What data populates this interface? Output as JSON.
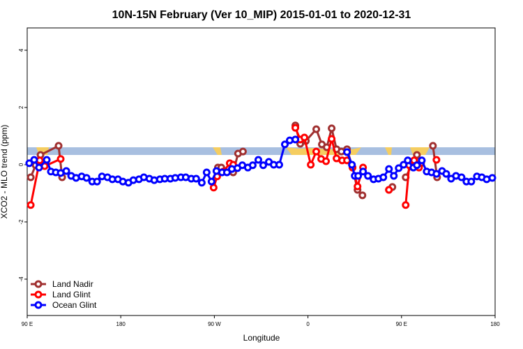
{
  "chart_data": {
    "type": "line",
    "title": "10N-15N February (Ver 10_MIP)   2015-01-01 to 2020-12-31",
    "xlabel": "Longitude",
    "ylabel": "XCO2 - MLO trend (ppm)",
    "xlim": [
      90,
      540
    ],
    "xticks": [
      {
        "value": 90,
        "label": "90 E"
      },
      180,
      {
        "value": 270,
        "label": "90 W"
      },
      {
        "value": 360,
        "label": "0"
      },
      {
        "value": 450,
        "label": "90 E"
      },
      {
        "value": 540,
        "label": "180"
      }
    ],
    "ylim": [
      -5.27,
      4.78
    ],
    "yticks": [
      -4,
      -2,
      0,
      2,
      4
    ],
    "legend": "lower left",
    "series": [
      {
        "name": "Land Nadir",
        "color": "#a03030",
        "x": [
          93.4,
          98.1,
          102.8,
          120.2,
          123.6,
          200,
          273.4,
          276.7,
          288.1,
          292.8,
          297.5,
          320,
          347.9,
          352.6,
          358.0,
          368.0,
          373.4,
          378.1,
          382.8,
          387.5,
          392.2,
          397.6,
          402.9,
          407.7,
          412.4,
          425,
          437.9,
          441.2,
          447,
          454.0,
          460.0,
          464.8,
          468.8,
          475,
          480.2,
          484.2
        ],
        "values": [
          -0.44,
          -0.02,
          0.34,
          0.66,
          -0.44,
          null,
          -0.1,
          -0.1,
          -0.27,
          0.39,
          0.46,
          null,
          1.37,
          0.73,
          0.83,
          1.24,
          0.71,
          0.61,
          1.27,
          0.54,
          0.46,
          0.54,
          -0.1,
          -0.88,
          -1.07,
          null,
          -0.88,
          -0.78,
          null,
          -0.44,
          0,
          0.34,
          0.05,
          null,
          0.66,
          -0.44
        ]
      },
      {
        "name": "Land Glint",
        "color": "#ff0000",
        "x": [
          93.4,
          102.1,
          106.8,
          122.2,
          200,
          269.3,
          272.7,
          278.7,
          284.8,
          288.1,
          310,
          347.9,
          352.6,
          356.6,
          362.7,
          368.0,
          372.7,
          377.4,
          382.8,
          387.5,
          392.9,
          397.6,
          402.9,
          407.7,
          413.0,
          425,
          437.9,
          445,
          454.0,
          457.4,
          462.1,
          466.8,
          475,
          483.6
        ],
        "values": [
          -1.41,
          0.15,
          -0.05,
          0.2,
          null,
          -0.8,
          -0.41,
          -0.24,
          0.05,
          0,
          null,
          1.29,
          0.88,
          0.95,
          0,
          0.46,
          0.2,
          0.12,
          0.9,
          0.22,
          0.15,
          0.15,
          -0.1,
          -0.76,
          -0.1,
          null,
          -0.88,
          null,
          -1.41,
          -0.02,
          0.15,
          -0.1,
          null,
          0.17
        ]
      },
      {
        "name": "Ocean Glint",
        "color": "#0000ff",
        "x": [
          92.0,
          96.7,
          101.4,
          108.8,
          112.8,
          117.5,
          122.2,
          127.6,
          132.3,
          137.0,
          142.4,
          147.1,
          152.5,
          157.2,
          161.9,
          167.2,
          171.9,
          177.3,
          182.0,
          187.4,
          192.1,
          197.5,
          202.2,
          207.5,
          212.2,
          217.6,
          222.3,
          227.7,
          232.4,
          237.8,
          242.5,
          247.8,
          252.5,
          257.9,
          262.6,
          267.3,
          272.0,
          277.4,
          282.1,
          286.8,
          292.2,
          296.9,
          302.2,
          306.9,
          312.3,
          317.0,
          322.4,
          327.1,
          332.4,
          337.8,
          342.5,
          347.9,
          372,
          397.6,
          402.3,
          405.0,
          408.3,
          413.0,
          417.7,
          423.1,
          427.8,
          432.5,
          437.9,
          442.6,
          447.3,
          452.0,
          456.0,
          461.4,
          464.8,
          469.5,
          474.2,
          478.9,
          483.6,
          489.0,
          493.0,
          497.7,
          502.4,
          507.7,
          512.4,
          517.1,
          522.5,
          527.2,
          531.9,
          537.3
        ],
        "values": [
          0.05,
          0.17,
          -0.1,
          0.17,
          -0.24,
          -0.27,
          -0.29,
          -0.22,
          -0.39,
          -0.46,
          -0.41,
          -0.46,
          -0.59,
          -0.59,
          -0.41,
          -0.44,
          -0.51,
          -0.51,
          -0.59,
          -0.63,
          -0.54,
          -0.51,
          -0.44,
          -0.49,
          -0.54,
          -0.51,
          -0.49,
          -0.49,
          -0.46,
          -0.44,
          -0.44,
          -0.49,
          -0.49,
          -0.63,
          -0.27,
          -0.59,
          -0.22,
          -0.27,
          -0.27,
          -0.15,
          -0.12,
          -0.02,
          -0.1,
          -0.02,
          0.17,
          -0.02,
          0.1,
          0,
          0,
          0.71,
          0.85,
          0.88,
          null,
          0.44,
          0,
          -0.39,
          -0.39,
          -0.24,
          -0.39,
          -0.51,
          -0.49,
          -0.44,
          -0.15,
          -0.39,
          -0.12,
          0,
          0.15,
          -0.1,
          -0.02,
          0.15,
          -0.24,
          -0.27,
          -0.32,
          -0.22,
          -0.32,
          -0.49,
          -0.39,
          -0.44,
          -0.59,
          -0.59,
          -0.41,
          -0.44,
          -0.51,
          -0.46
        ]
      }
    ]
  }
}
